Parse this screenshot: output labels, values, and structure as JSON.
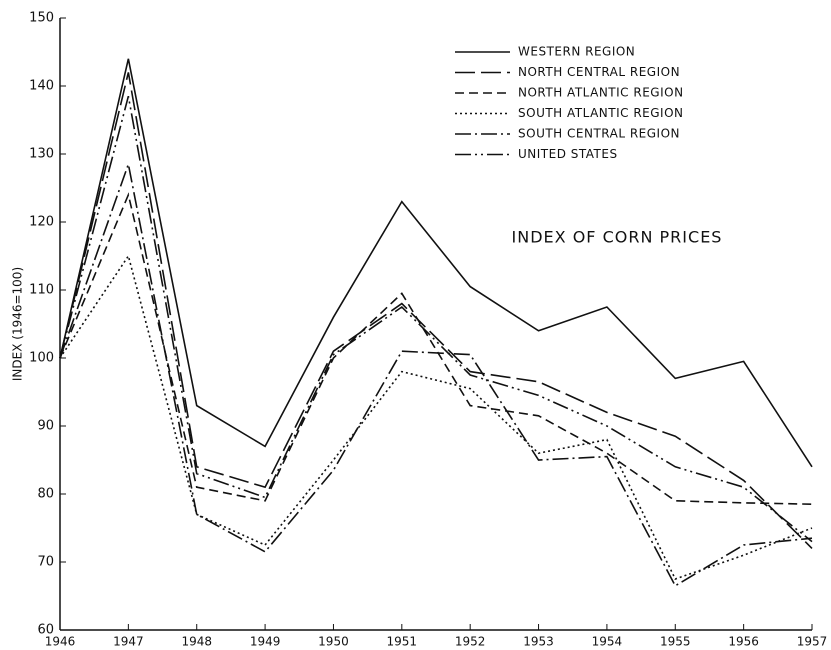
{
  "chart_data": {
    "type": "line",
    "annotation": "INDEX OF CORN PRICES",
    "ylabel": "INDEX (1946=100)",
    "x": [
      1946,
      1947,
      1948,
      1949,
      1950,
      1951,
      1952,
      1953,
      1954,
      1955,
      1956,
      1957
    ],
    "xlim": [
      1946,
      1957
    ],
    "xticks": [
      1946,
      1947,
      1948,
      1949,
      1950,
      1951,
      1952,
      1953,
      1954,
      1955,
      1956,
      1957
    ],
    "ylim": [
      60,
      150
    ],
    "yticks": [
      60,
      70,
      80,
      90,
      100,
      110,
      120,
      130,
      140,
      150
    ],
    "grid": false,
    "legend": "upper right",
    "series": [
      {
        "name": "WESTERN REGION",
        "color": "#111111",
        "dash": "solid",
        "values": [
          100,
          144,
          93,
          87,
          106,
          123,
          110.5,
          104,
          107.5,
          97,
          99.5,
          84
        ]
      },
      {
        "name": "NORTH CENTRAL REGION",
        "color": "#111111",
        "dash": "long-dash",
        "values": [
          100,
          142,
          84,
          81,
          101,
          108,
          98,
          96.5,
          92,
          88.5,
          82,
          72
        ]
      },
      {
        "name": "NORTH ATLANTIC REGION",
        "color": "#111111",
        "dash": "short-dash",
        "values": [
          100,
          124,
          81,
          79,
          100,
          109.5,
          93,
          91.5,
          86,
          79,
          78.7,
          78.5
        ]
      },
      {
        "name": "SOUTH ATLANTIC REGION",
        "color": "#111111",
        "dash": "dotted",
        "values": [
          100,
          115,
          77,
          72.5,
          85,
          98,
          95.5,
          86,
          88,
          67.5,
          71,
          75
        ]
      },
      {
        "name": "SOUTH CENTRAL REGION",
        "color": "#111111",
        "dash": "dash-dot",
        "values": [
          100,
          128.5,
          77,
          71.5,
          83.5,
          101,
          100.5,
          85,
          85.5,
          66.5,
          72.5,
          73.5
        ]
      },
      {
        "name": "UNITED STATES",
        "color": "#111111",
        "dash": "dash-dot-dot",
        "values": [
          100,
          138.5,
          83,
          79.5,
          100.5,
          107.5,
          97.5,
          94.5,
          90,
          84,
          81,
          73
        ]
      }
    ]
  }
}
